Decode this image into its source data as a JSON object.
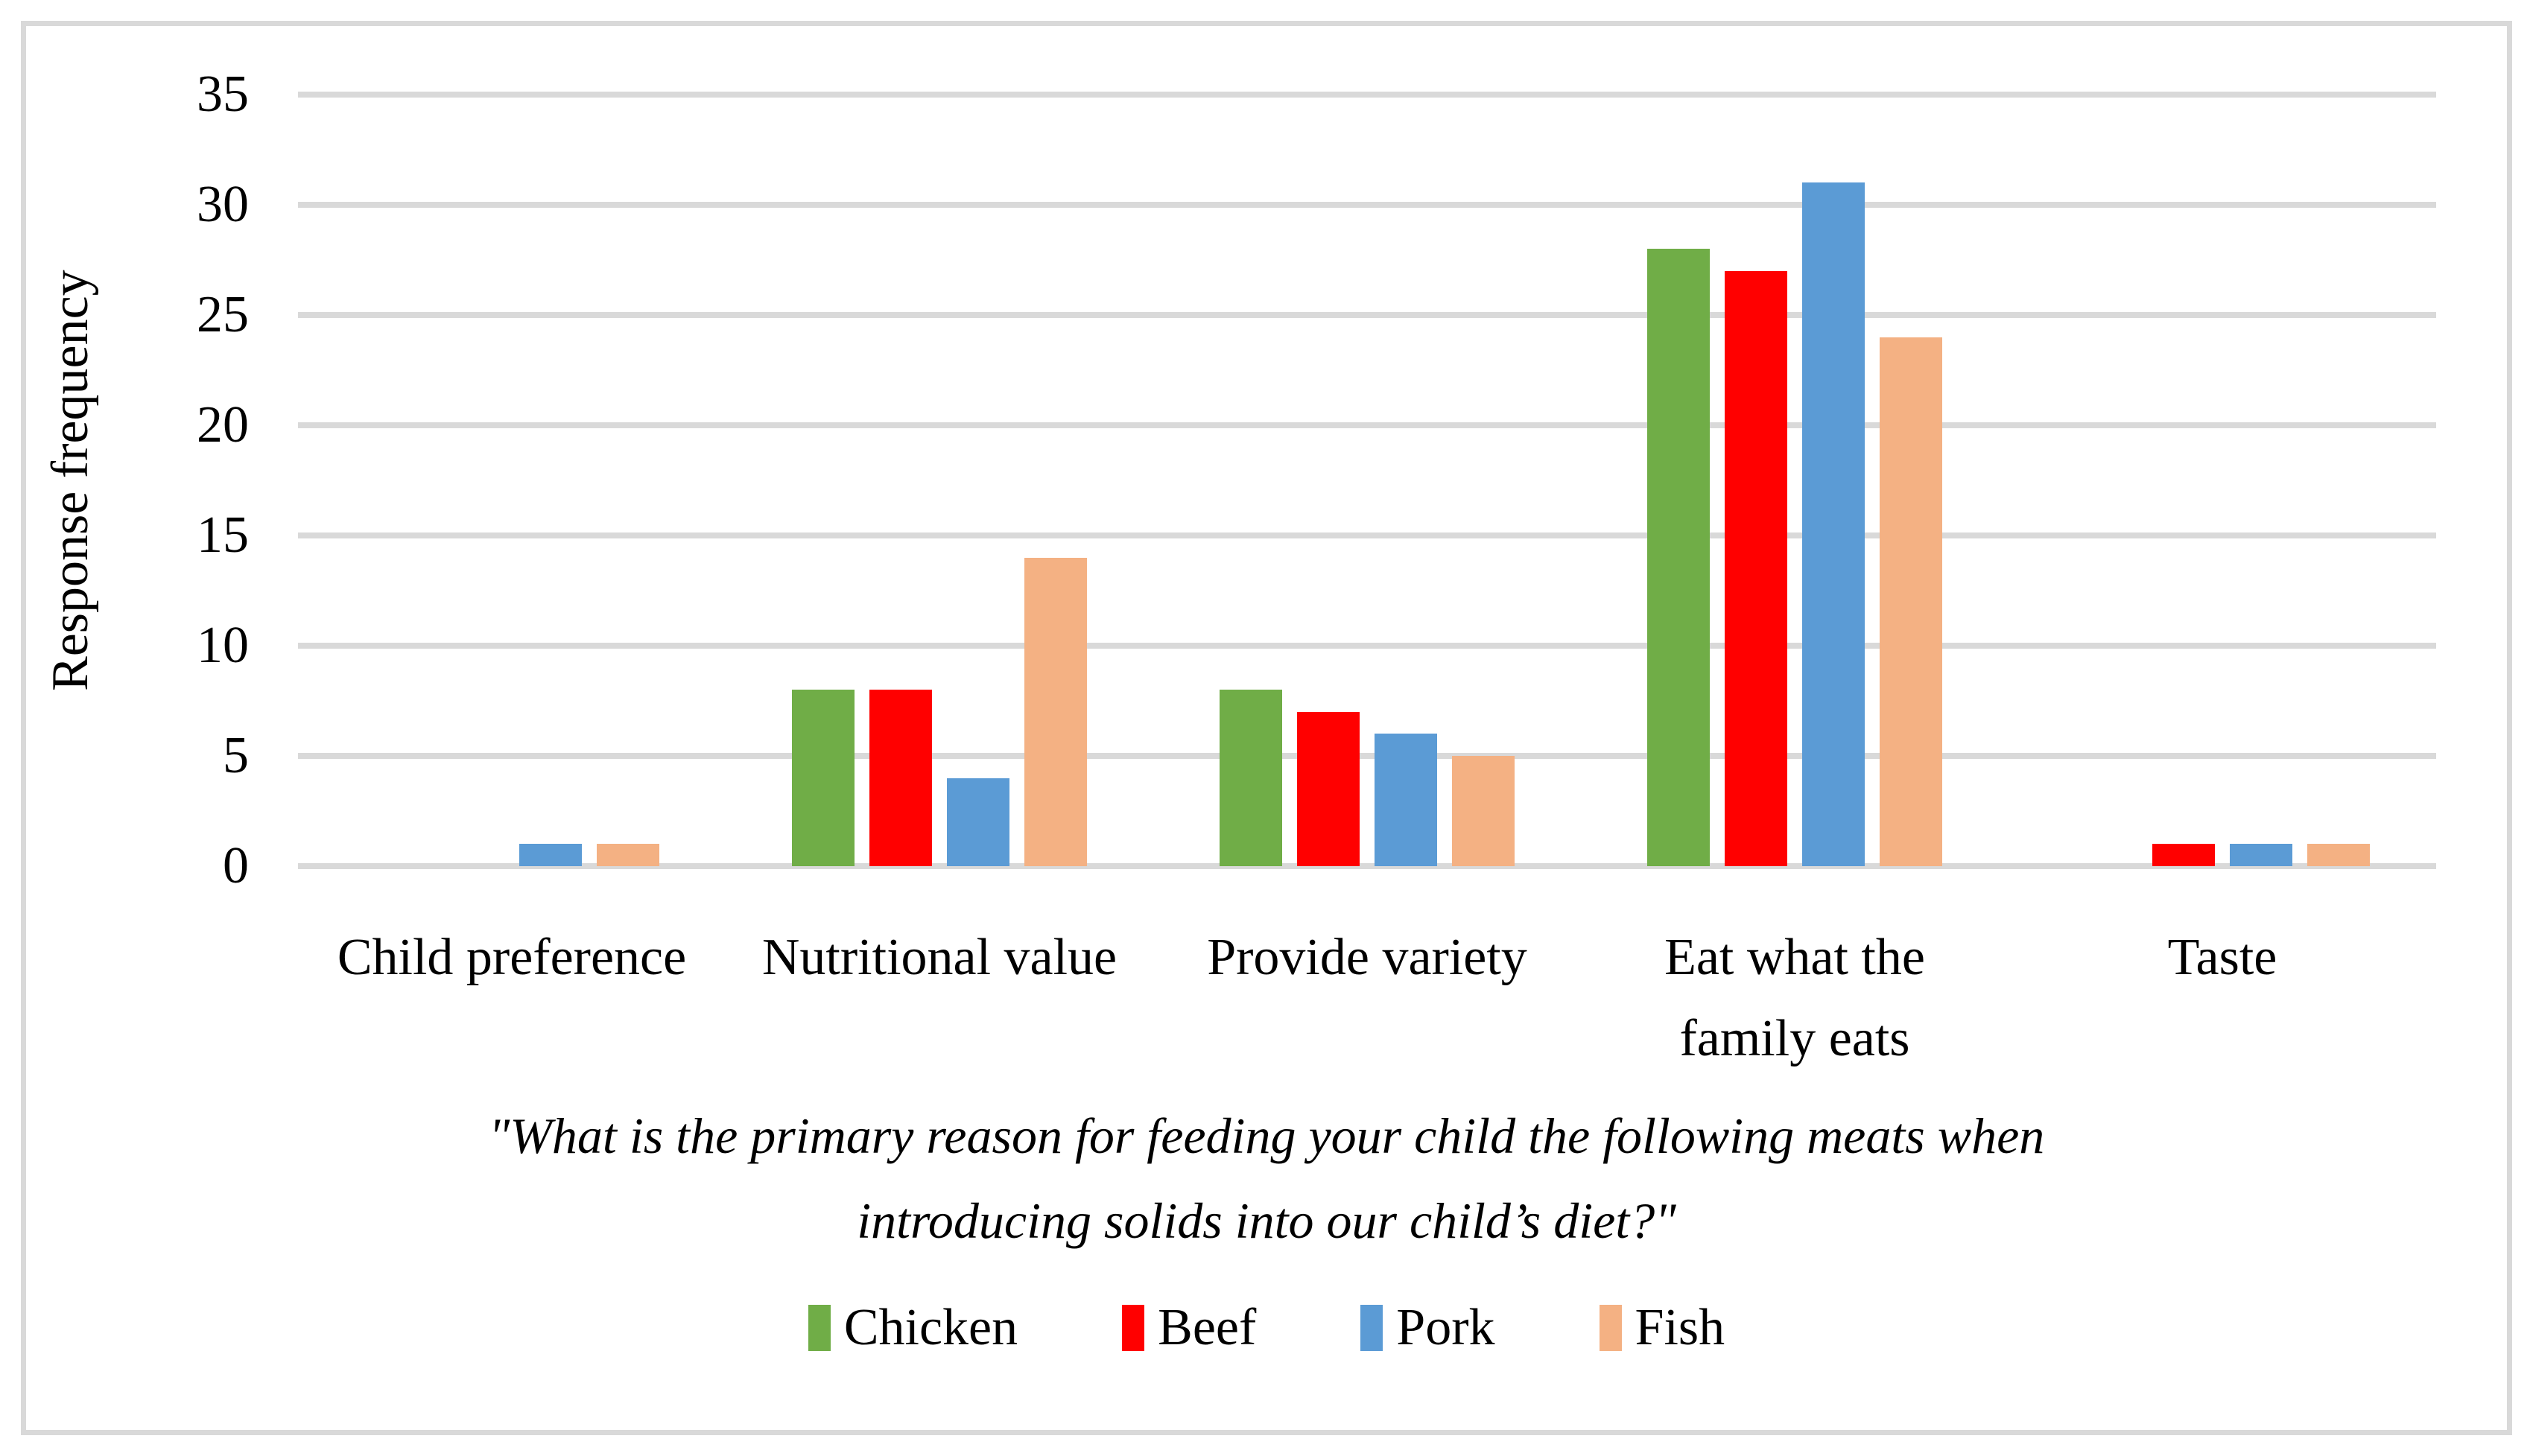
{
  "figure": {
    "background": "#FFFFFF",
    "border_color": "#D9D9D9"
  },
  "chart_data": {
    "type": "bar",
    "title": "",
    "ylabel": "Response frequency",
    "xlabel": "",
    "categories": [
      "Child preference",
      "Nutritional value",
      "Provide variety",
      "Eat what the\nfamily eats",
      "Taste"
    ],
    "series": [
      {
        "name": "Chicken",
        "color": "#70AD47",
        "values": [
          0,
          8,
          8,
          28,
          0
        ]
      },
      {
        "name": "Beef",
        "color": "#FF0000",
        "values": [
          0,
          8,
          7,
          27,
          1
        ]
      },
      {
        "name": "Pork",
        "color": "#5B9BD5",
        "values": [
          1,
          4,
          6,
          31,
          1
        ]
      },
      {
        "name": "Fish",
        "color": "#F4B183",
        "values": [
          1,
          14,
          5,
          24,
          1
        ]
      }
    ],
    "ylim": [
      0,
      35
    ],
    "yticks": [
      0,
      5,
      10,
      15,
      20,
      25,
      30,
      35
    ],
    "grid": true,
    "gridline_color": "#D9D9D9",
    "legend_position": "bottom",
    "caption_lines": [
      "\"What is the primary reason for feeding your child the following meats when",
      "introducing solids into our child’s diet?\""
    ]
  }
}
